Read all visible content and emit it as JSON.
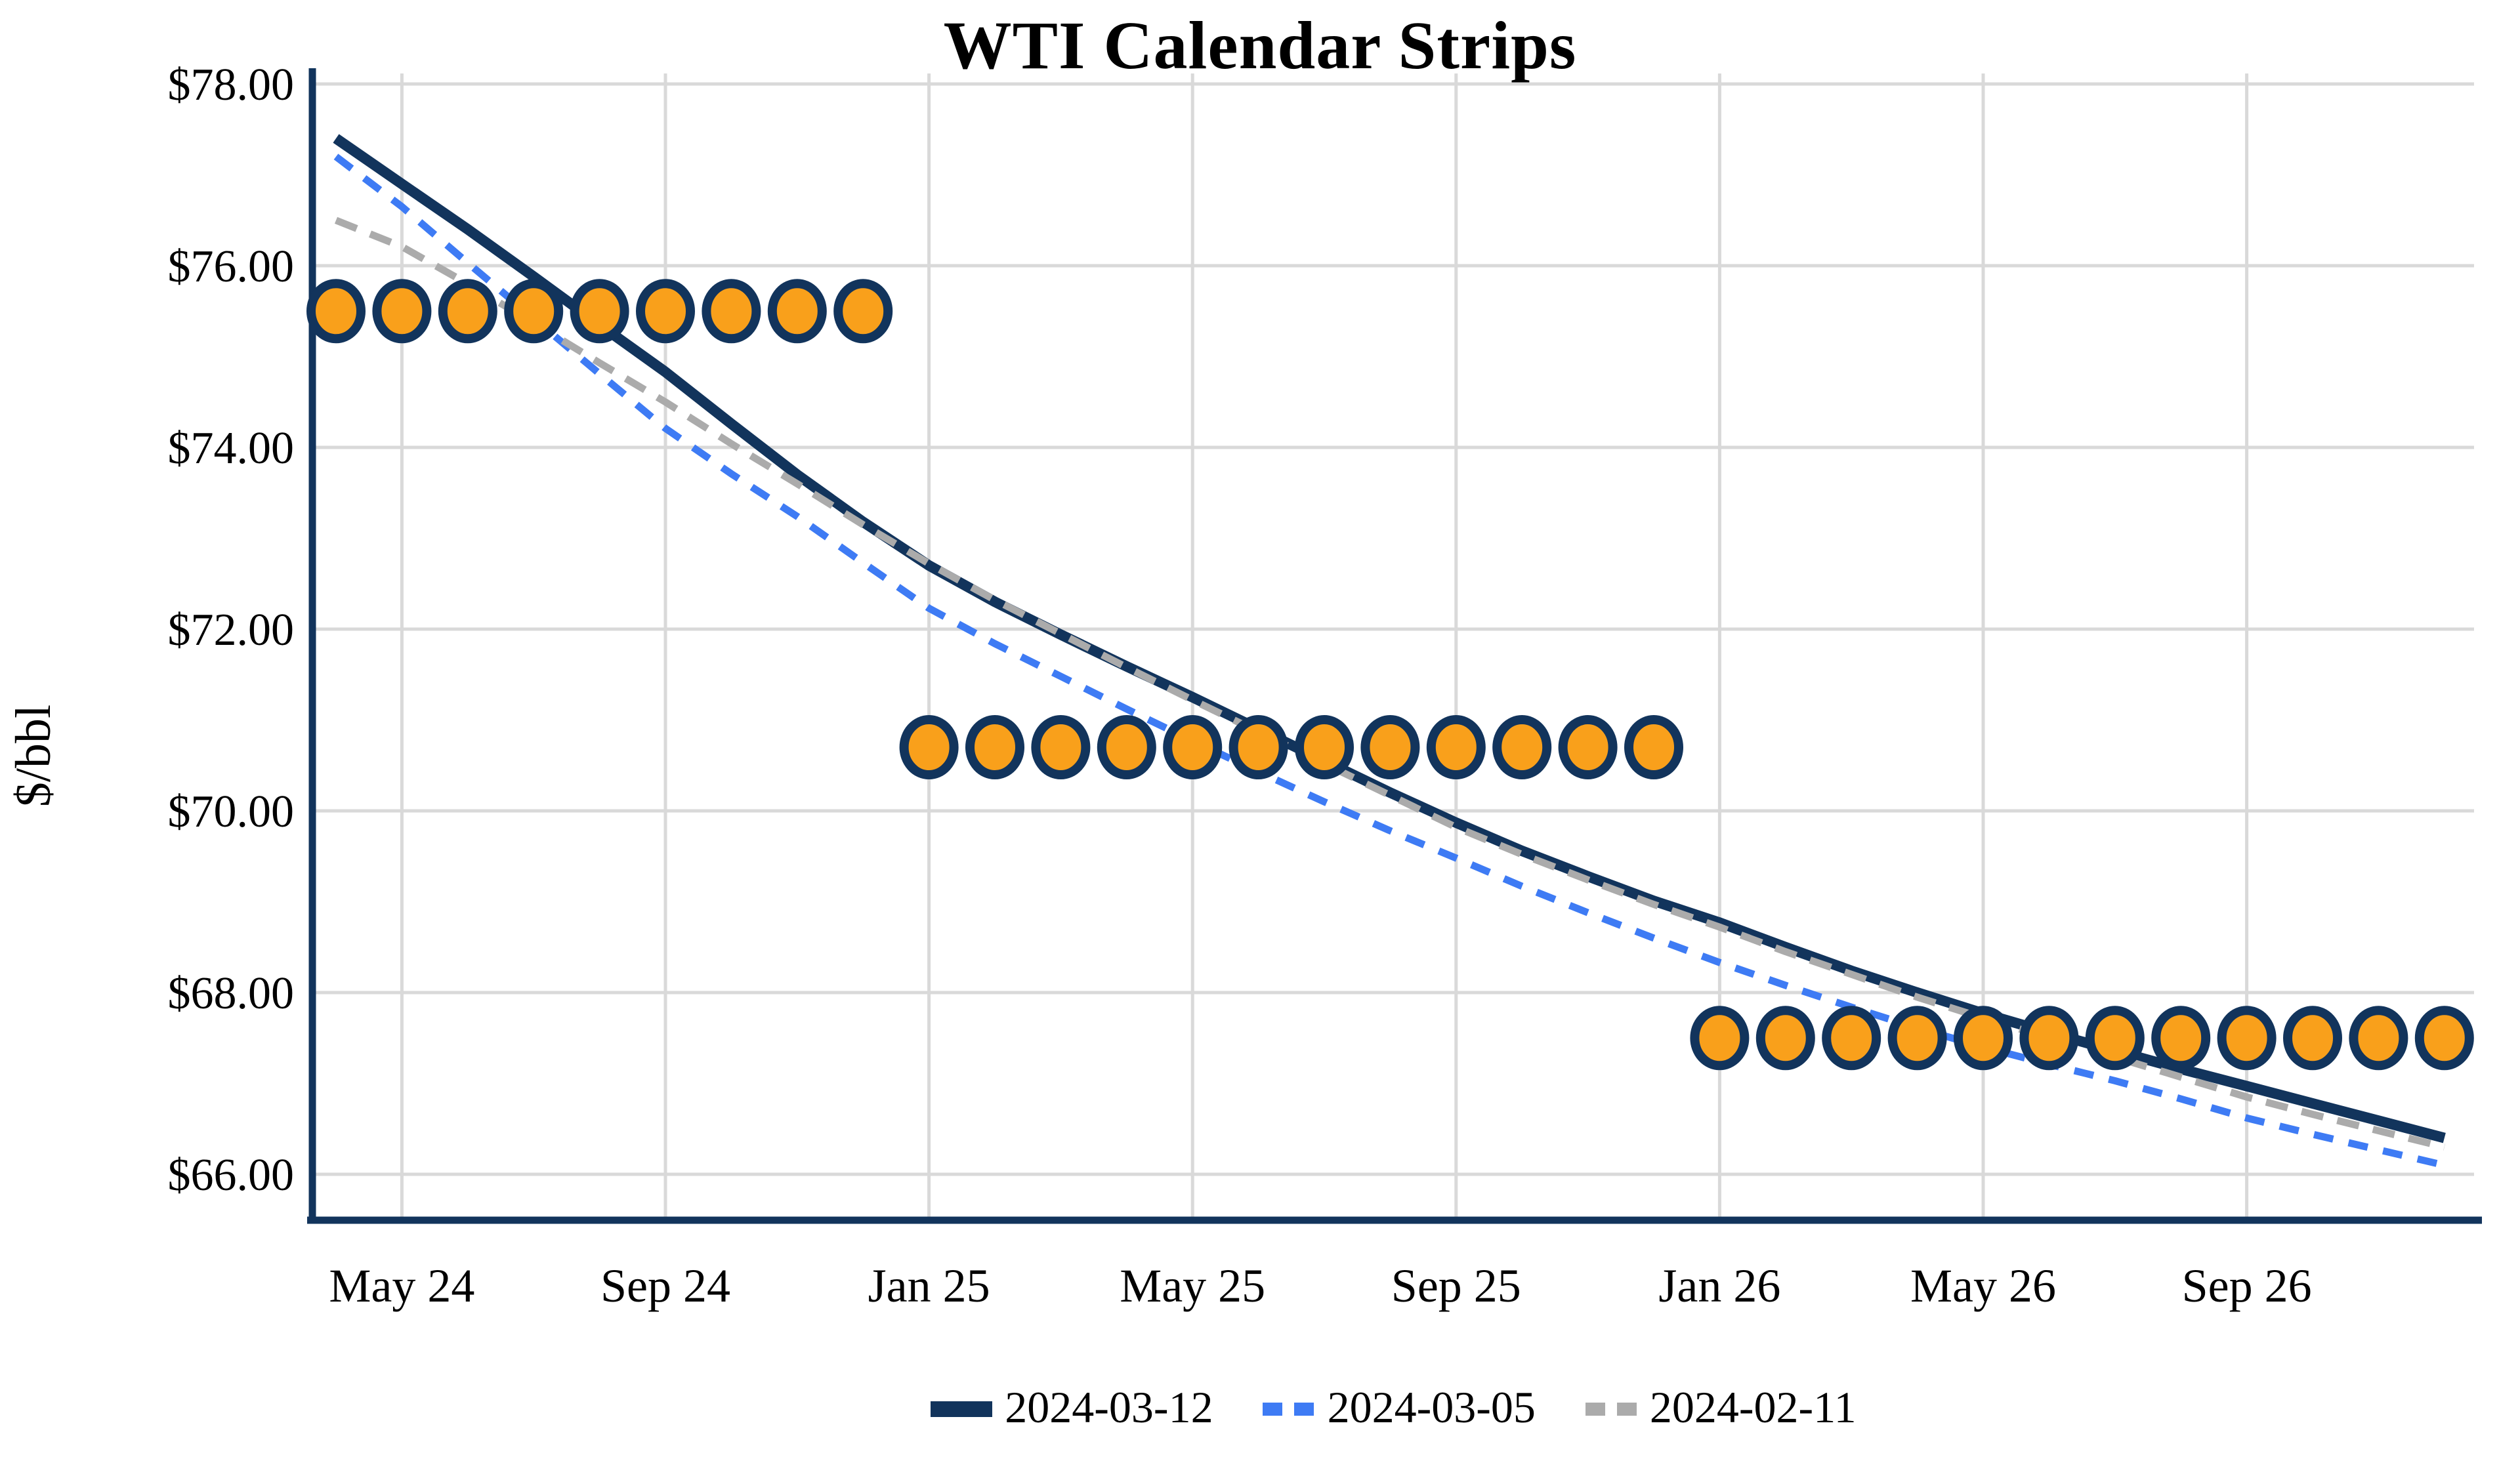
{
  "title": "WTI Calendar Strips",
  "y_axis": {
    "title": "$/bbl",
    "tick_labels": [
      "$78.00",
      "$76.00",
      "$74.00",
      "$72.00",
      "$70.00",
      "$68.00",
      "$66.00"
    ],
    "tick_values": [
      78,
      76,
      74,
      72,
      70,
      68,
      66
    ]
  },
  "x_axis": {
    "tick_labels": [
      "May 24",
      "Sep 24",
      "Jan 25",
      "May 25",
      "Sep 25",
      "Jan 26",
      "May 26",
      "Sep 26"
    ],
    "tick_month_index": [
      1,
      5,
      9,
      13,
      17,
      21,
      25,
      29
    ]
  },
  "legend": {
    "items": [
      {
        "label": "2024-03-12",
        "style": "solid",
        "color": "#12345C"
      },
      {
        "label": "2024-03-05",
        "style": "dashed",
        "color": "#3E7BF4"
      },
      {
        "label": "2024-02-11",
        "style": "dashed",
        "color": "#ABABAB"
      }
    ]
  },
  "colors": {
    "navy": "#12345C",
    "bright_blue": "#3E7BF4",
    "gray": "#ABABAB",
    "marker_orange": "#F9A01B",
    "gridline": "#D9D9D9",
    "text": "#000000"
  },
  "chart_data": {
    "type": "line",
    "title": "WTI Calendar Strips",
    "xlabel": "",
    "ylabel": "$/bbl",
    "ylim": [
      65.5,
      78.1
    ],
    "grid": true,
    "legend_position": "bottom-center",
    "x": [
      "Apr 24",
      "May 24",
      "Jun 24",
      "Jul 24",
      "Aug 24",
      "Sep 24",
      "Oct 24",
      "Nov 24",
      "Dec 24",
      "Jan 25",
      "Feb 25",
      "Mar 25",
      "Apr 25",
      "May 25",
      "Jun 25",
      "Jul 25",
      "Aug 25",
      "Sep 25",
      "Oct 25",
      "Nov 25",
      "Dec 25",
      "Jan 26",
      "Feb 26",
      "Mar 26",
      "Apr 26",
      "May 26",
      "Jun 26",
      "Jul 26",
      "Aug 26",
      "Sep 26",
      "Oct 26",
      "Nov 26",
      "Dec 26"
    ],
    "series": [
      {
        "name": "2024-03-12",
        "style": "solid",
        "color": "#12345C",
        "width": 8,
        "values": [
          77.4,
          76.9,
          76.4,
          75.88,
          75.35,
          74.83,
          74.26,
          73.7,
          73.18,
          72.7,
          72.3,
          71.94,
          71.59,
          71.25,
          70.9,
          70.55,
          70.2,
          69.87,
          69.56,
          69.28,
          69.01,
          68.77,
          68.5,
          68.24,
          68.0,
          67.77,
          67.56,
          67.36,
          67.16,
          66.97,
          66.78,
          66.59,
          66.4
        ]
      },
      {
        "name": "2024-03-05",
        "style": "dashed",
        "color": "#3E7BF4",
        "width": 5.5,
        "values": [
          77.2,
          76.65,
          76.03,
          75.42,
          74.81,
          74.21,
          73.71,
          73.24,
          72.73,
          72.23,
          71.84,
          71.48,
          71.12,
          70.77,
          70.43,
          70.1,
          69.78,
          69.48,
          69.17,
          68.88,
          68.6,
          68.33,
          68.08,
          67.84,
          67.61,
          67.4,
          67.21,
          67.03,
          66.83,
          66.62,
          66.44,
          66.27,
          66.1
        ]
      },
      {
        "name": "2024-02-11",
        "style": "dashed",
        "color": "#ABABAB",
        "width": 5.5,
        "values": [
          76.5,
          76.21,
          75.8,
          75.37,
          74.93,
          74.5,
          74.04,
          73.6,
          73.15,
          72.72,
          72.32,
          71.95,
          71.58,
          71.22,
          70.87,
          70.52,
          70.17,
          69.82,
          69.52,
          69.24,
          68.97,
          68.72,
          68.45,
          68.2,
          67.95,
          67.72,
          67.5,
          67.29,
          67.07,
          66.85,
          66.66,
          66.48,
          66.3
        ]
      }
    ],
    "markers": {
      "shape": "circle",
      "fill": "#F9A01B",
      "outline": "#12345C",
      "values": [
        75.5,
        75.5,
        75.5,
        75.5,
        75.5,
        75.5,
        75.5,
        75.5,
        75.5,
        70.7,
        70.7,
        70.7,
        70.7,
        70.7,
        70.7,
        70.7,
        70.7,
        70.7,
        70.7,
        70.7,
        70.7,
        67.5,
        67.5,
        67.5,
        67.5,
        67.5,
        67.5,
        67.5,
        67.5,
        67.5,
        67.5,
        67.5,
        67.5
      ],
      "bands": [
        {
          "from": "Apr 24",
          "to": "Dec 24",
          "value": 75.5
        },
        {
          "from": "Jan 25",
          "to": "Dec 25",
          "value": 70.7
        },
        {
          "from": "Jan 26",
          "to": "Dec 26",
          "value": 67.5
        }
      ]
    }
  }
}
